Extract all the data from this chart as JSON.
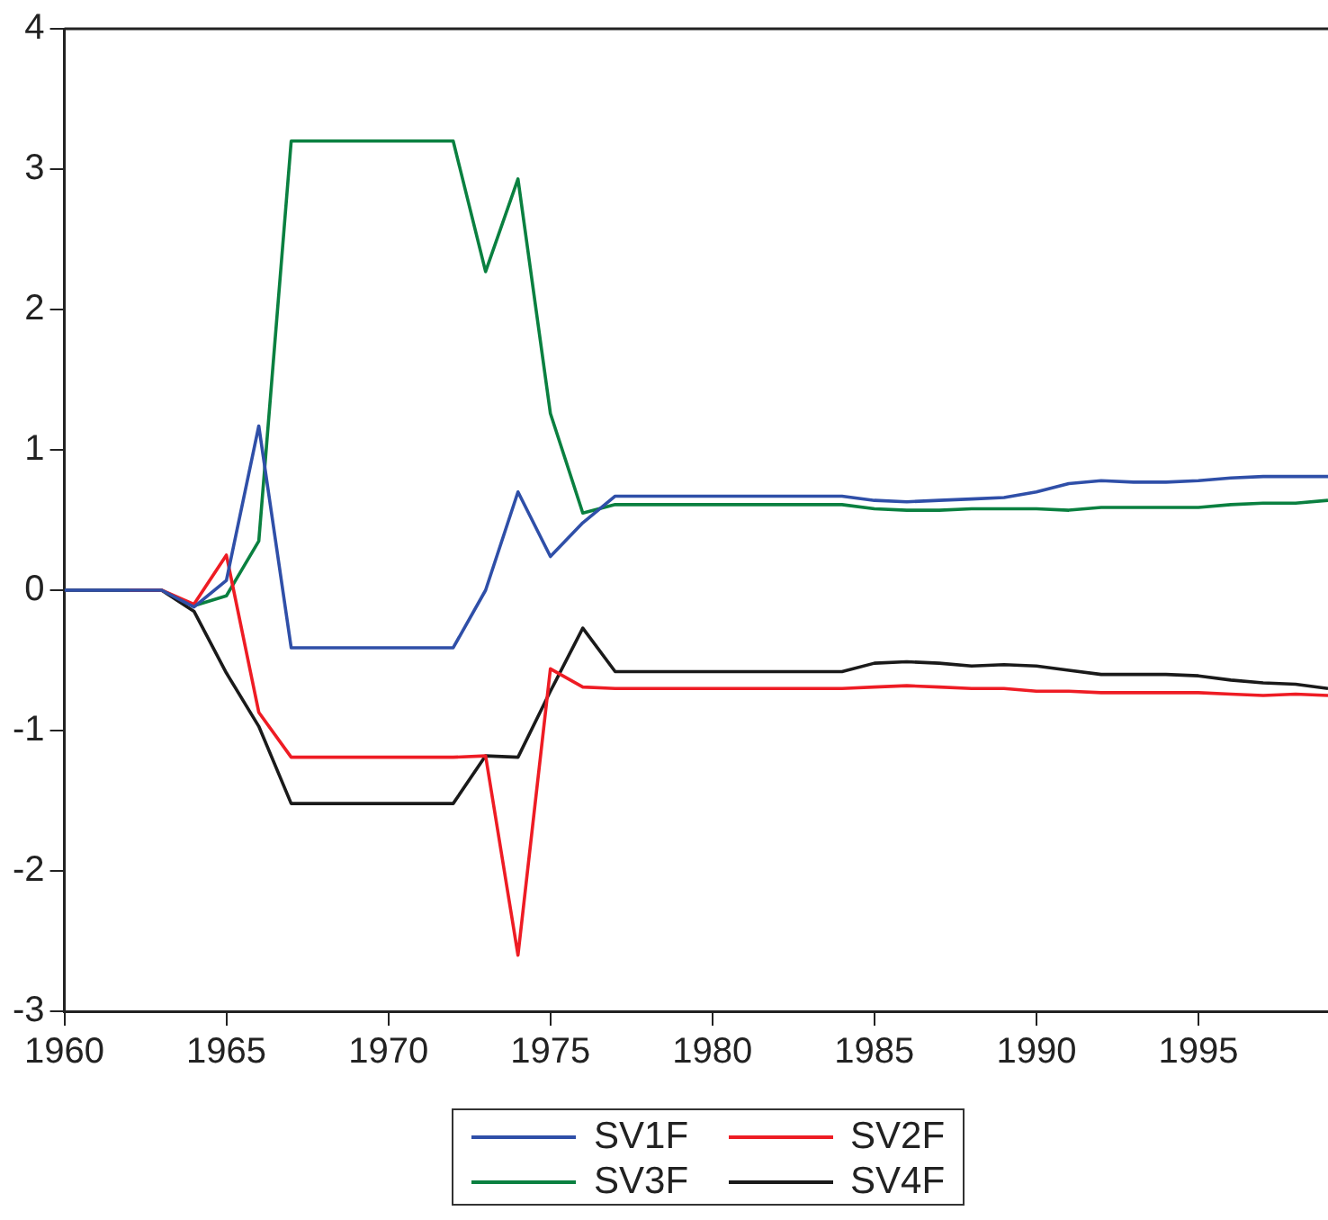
{
  "chart_data": {
    "type": "line",
    "x": [
      1960,
      1961,
      1962,
      1963,
      1964,
      1965,
      1966,
      1967,
      1968,
      1969,
      1970,
      1971,
      1972,
      1973,
      1974,
      1975,
      1976,
      1977,
      1978,
      1979,
      1980,
      1981,
      1982,
      1983,
      1984,
      1985,
      1986,
      1987,
      1988,
      1989,
      1990,
      1991,
      1992,
      1993,
      1994,
      1995,
      1996,
      1997,
      1998,
      1999
    ],
    "xlim": [
      1960,
      1999
    ],
    "xticks": [
      1960,
      1965,
      1970,
      1975,
      1980,
      1985,
      1990,
      1995
    ],
    "ylim": [
      -3,
      4
    ],
    "yticks": [
      -3,
      -2,
      -1,
      0,
      1,
      2,
      3,
      4
    ],
    "grid": false,
    "legend": "bottom",
    "marker": "none",
    "line_style": "solid",
    "series": [
      {
        "name": "SV1F",
        "color": "#2f4fa8",
        "values": [
          0,
          0,
          0,
          0,
          -0.12,
          0.07,
          1.17,
          -0.41,
          -0.41,
          -0.41,
          -0.41,
          -0.41,
          -0.41,
          0,
          0.7,
          0.24,
          0.48,
          0.67,
          0.67,
          0.67,
          0.67,
          0.67,
          0.67,
          0.67,
          0.67,
          0.64,
          0.63,
          0.64,
          0.65,
          0.66,
          0.7,
          0.76,
          0.78,
          0.77,
          0.77,
          0.78,
          0.8,
          0.81,
          0.81,
          0.81
        ]
      },
      {
        "name": "SV2F",
        "color": "#ee1c24",
        "values": [
          null,
          null,
          0,
          0,
          -0.1,
          0.25,
          -0.87,
          -1.19,
          -1.19,
          -1.19,
          -1.19,
          -1.19,
          -1.19,
          -1.18,
          -2.6,
          -0.56,
          -0.69,
          -0.7,
          -0.7,
          -0.7,
          -0.7,
          -0.7,
          -0.7,
          -0.7,
          -0.7,
          -0.69,
          -0.68,
          -0.69,
          -0.7,
          -0.7,
          -0.72,
          -0.72,
          -0.73,
          -0.73,
          -0.73,
          -0.73,
          -0.74,
          -0.75,
          -0.74,
          -0.75
        ]
      },
      {
        "name": "SV3F",
        "color": "#0a8040",
        "values": [
          null,
          null,
          null,
          0,
          -0.11,
          -0.04,
          0.35,
          3.2,
          3.2,
          3.2,
          3.2,
          3.2,
          3.2,
          2.27,
          2.93,
          1.26,
          0.55,
          0.61,
          0.61,
          0.61,
          0.61,
          0.61,
          0.61,
          0.61,
          0.61,
          0.58,
          0.57,
          0.57,
          0.58,
          0.58,
          0.58,
          0.57,
          0.59,
          0.59,
          0.59,
          0.59,
          0.61,
          0.62,
          0.62,
          0.64
        ]
      },
      {
        "name": "SV4F",
        "color": "#1a1a1a",
        "values": [
          0,
          0,
          0,
          0,
          -0.15,
          -0.59,
          -0.97,
          -1.52,
          -1.52,
          -1.52,
          -1.52,
          -1.52,
          -1.52,
          -1.18,
          -1.19,
          -0.72,
          -0.27,
          -0.58,
          -0.58,
          -0.58,
          -0.58,
          -0.58,
          -0.58,
          -0.58,
          -0.58,
          -0.52,
          -0.51,
          -0.52,
          -0.54,
          -0.53,
          -0.54,
          -0.57,
          -0.6,
          -0.6,
          -0.6,
          -0.61,
          -0.64,
          -0.66,
          -0.67,
          -0.7
        ]
      }
    ]
  }
}
